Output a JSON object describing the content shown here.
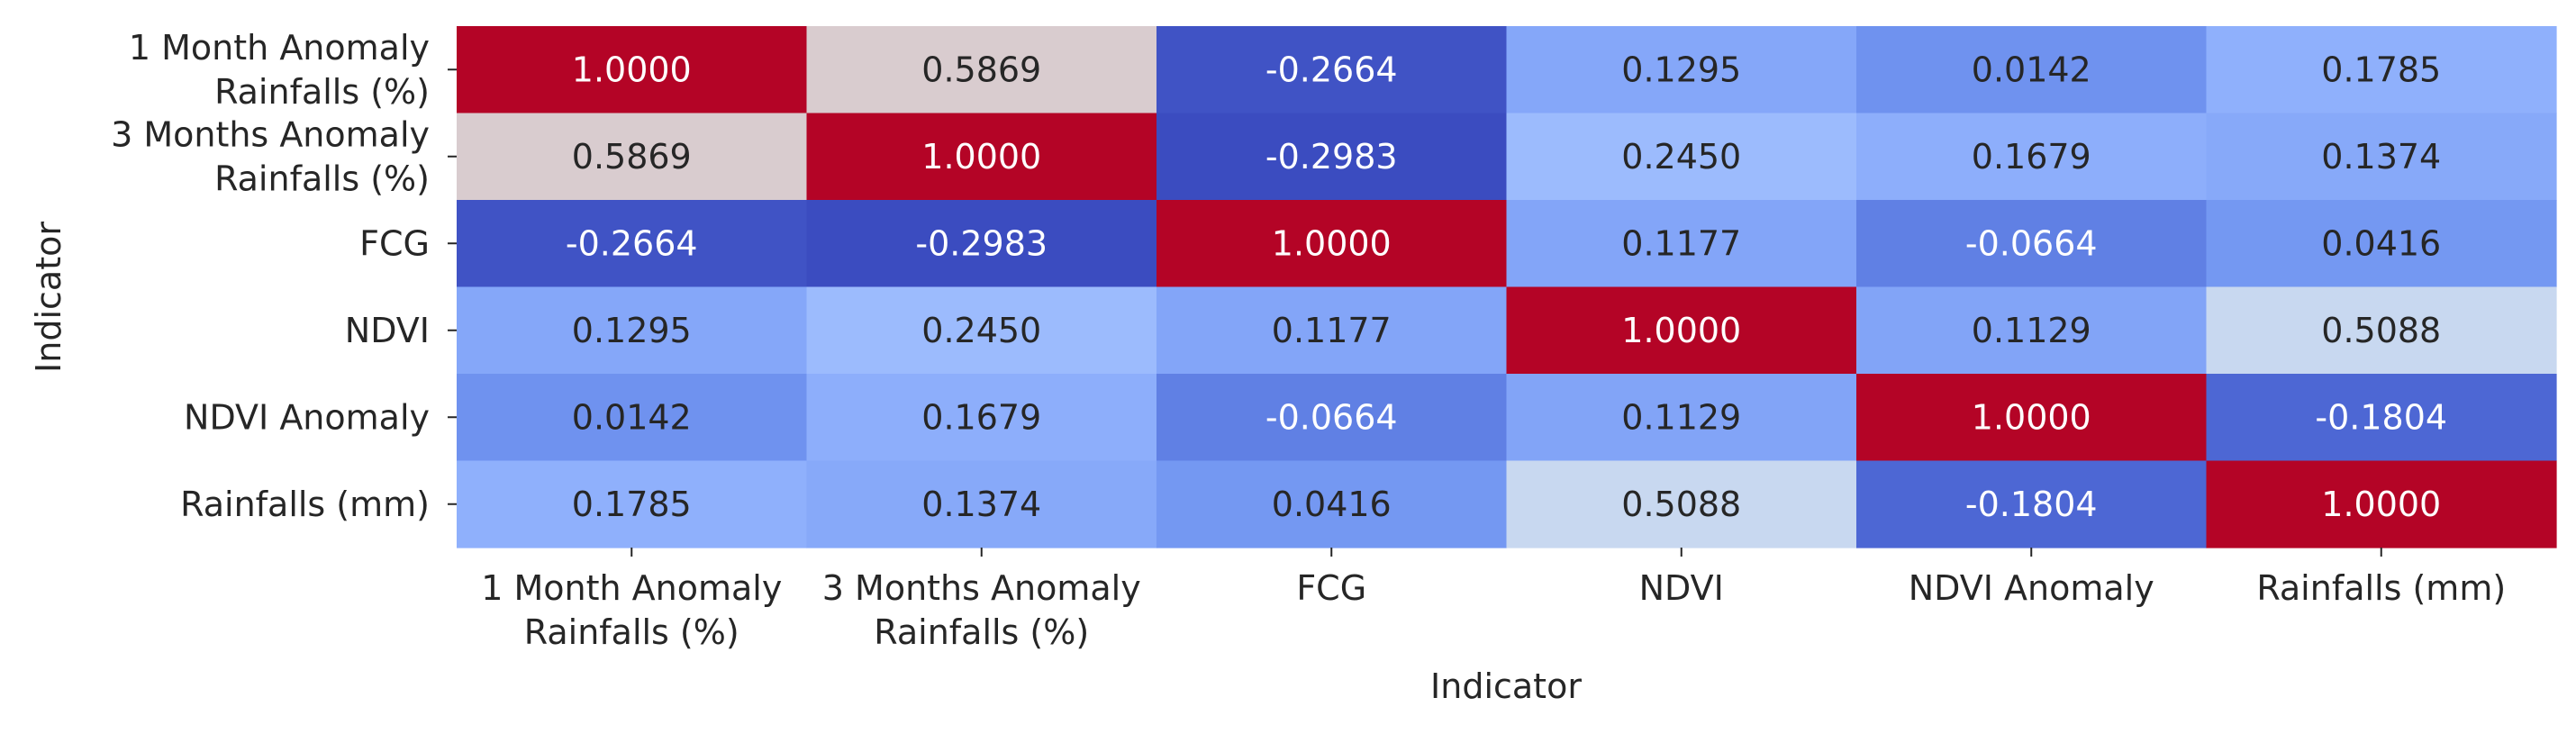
{
  "chart_data": {
    "type": "heatmap",
    "title": "",
    "xlabel": "Indicator",
    "ylabel": "Indicator",
    "x_tick_labels": [
      [
        "1 Month Anomaly",
        "Rainfalls (%)"
      ],
      [
        "3 Months Anomaly",
        "Rainfalls (%)"
      ],
      [
        "FCG"
      ],
      [
        "NDVI"
      ],
      [
        "NDVI Anomaly"
      ],
      [
        "Rainfalls (mm)"
      ]
    ],
    "y_tick_labels": [
      [
        "1 Month Anomaly",
        "Rainfalls (%)"
      ],
      [
        "3 Months Anomaly",
        "Rainfalls (%)"
      ],
      [
        "FCG"
      ],
      [
        "NDVI"
      ],
      [
        "NDVI Anomaly"
      ],
      [
        "Rainfalls (mm)"
      ]
    ],
    "cell_text": [
      [
        "1.0000",
        "0.5869",
        "-0.2664",
        "0.1295",
        "0.0142",
        "0.1785"
      ],
      [
        "0.5869",
        "1.0000",
        "-0.2983",
        "0.2450",
        "0.1679",
        "0.1374"
      ],
      [
        "-0.2664",
        "-0.2983",
        "1.0000",
        "0.1177",
        "-0.0664",
        "0.0416"
      ],
      [
        "0.1295",
        "0.2450",
        "0.1177",
        "1.0000",
        "0.1129",
        "0.5088"
      ],
      [
        "0.0142",
        "0.1679",
        "-0.0664",
        "0.1129",
        "1.0000",
        "-0.1804"
      ],
      [
        "0.1785",
        "0.1374",
        "0.0416",
        "0.5088",
        "-0.1804",
        "1.0000"
      ]
    ],
    "values": [
      [
        1.0,
        0.5869,
        -0.2664,
        0.1295,
        0.0142,
        0.1785
      ],
      [
        0.5869,
        1.0,
        -0.2983,
        0.245,
        0.1679,
        0.1374
      ],
      [
        -0.2664,
        -0.2983,
        1.0,
        0.1177,
        -0.0664,
        0.0416
      ],
      [
        0.1295,
        0.245,
        0.1177,
        1.0,
        0.1129,
        0.5088
      ],
      [
        0.0142,
        0.1679,
        -0.0664,
        0.1129,
        1.0,
        -0.1804
      ],
      [
        0.1785,
        0.1374,
        0.0416,
        0.5088,
        -0.1804,
        1.0
      ]
    ],
    "colormap": "coolwarm",
    "color_range": [
      -0.2983,
      1.0
    ],
    "colorbar": false,
    "colors": {
      "low": "#3b4cc0",
      "mid": "#dddddd",
      "high": "#b40426",
      "text_dark": "#262626",
      "text_light": "#ffffff"
    }
  }
}
